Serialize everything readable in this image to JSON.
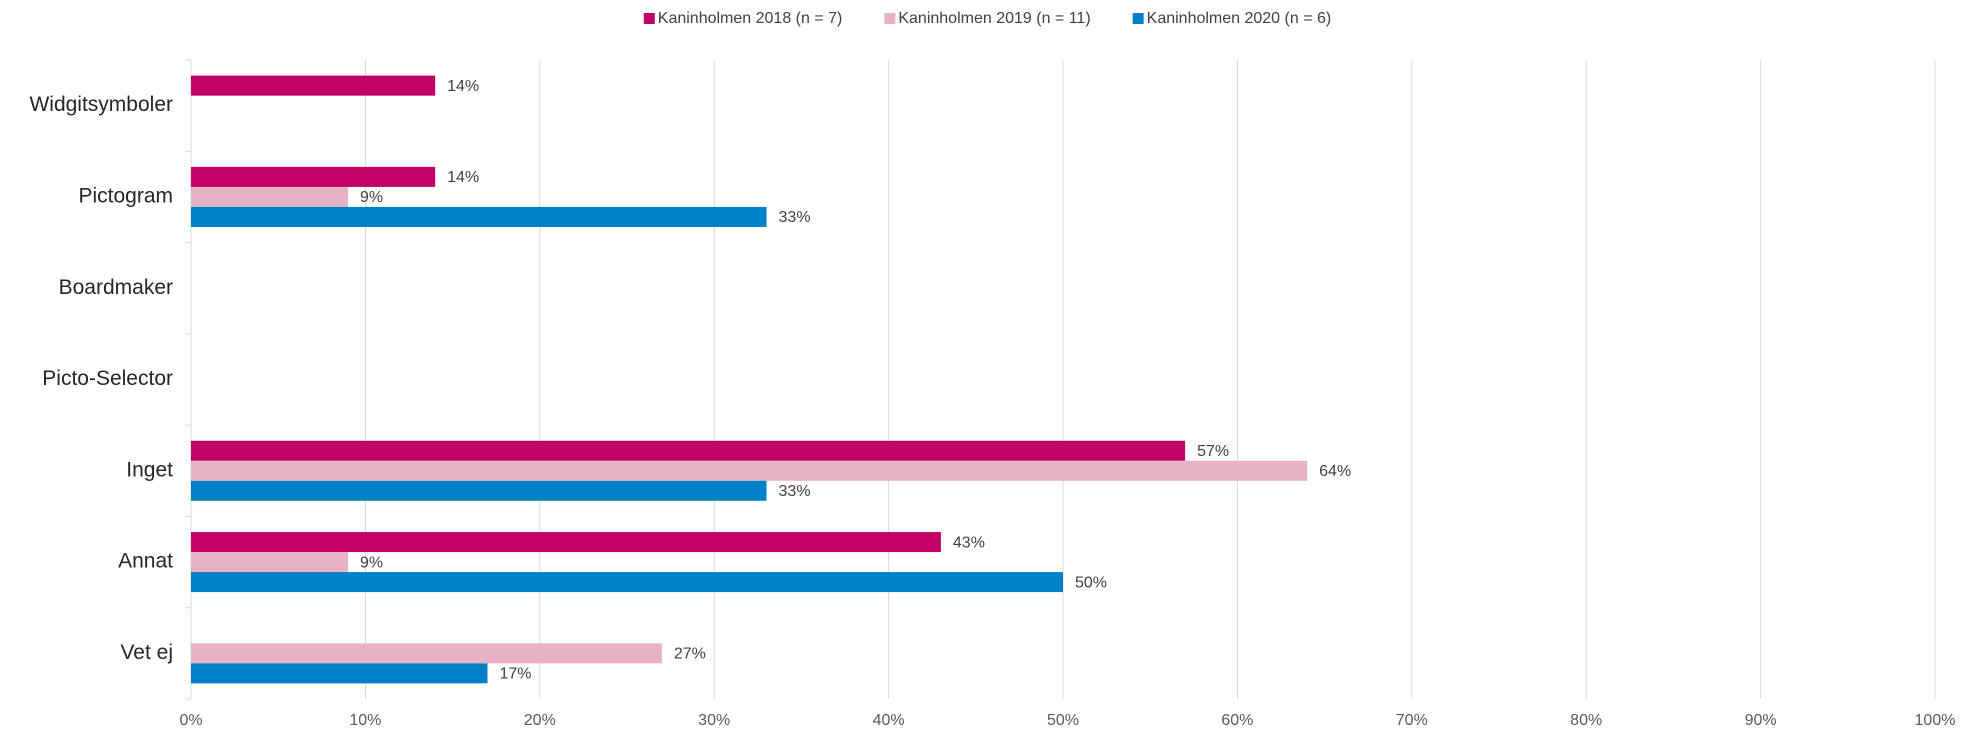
{
  "chart_data": {
    "type": "hbar",
    "categories": [
      "Widgitsymboler",
      "Pictogram",
      "Boardmaker",
      "Picto-Selector",
      "Inget",
      "Annat",
      "Vet ej"
    ],
    "series": [
      {
        "name": "Kaninholmen 2018 (n = 7)",
        "color": "#c10066",
        "values": [
          14,
          14,
          null,
          null,
          57,
          43,
          null
        ],
        "value_labels": [
          "14%",
          "14%",
          null,
          null,
          "57%",
          "43%",
          null
        ]
      },
      {
        "name": "Kaninholmen 2019 (n = 11)",
        "color": "#e5b3c5",
        "values": [
          null,
          9,
          null,
          null,
          64,
          9,
          27
        ],
        "value_labels": [
          null,
          "9%",
          null,
          null,
          "64%",
          "9%",
          "27%"
        ]
      },
      {
        "name": "Kaninholmen 2020 (n = 6)",
        "color": "#0080c6",
        "values": [
          null,
          33,
          null,
          null,
          33,
          50,
          17
        ],
        "value_labels": [
          null,
          "33%",
          null,
          null,
          "33%",
          "50%",
          "17%"
        ]
      }
    ],
    "xlim": [
      0,
      100
    ],
    "xticks": [
      {
        "value": 0,
        "label": "0%"
      },
      {
        "value": 10,
        "label": "10%"
      },
      {
        "value": 20,
        "label": "20%"
      },
      {
        "value": 30,
        "label": "30%"
      },
      {
        "value": 40,
        "label": "40%"
      },
      {
        "value": 50,
        "label": "50%"
      },
      {
        "value": 60,
        "label": "60%"
      },
      {
        "value": 70,
        "label": "70%"
      },
      {
        "value": 80,
        "label": "80%"
      },
      {
        "value": 90,
        "label": "90%"
      },
      {
        "value": 100,
        "label": "100%"
      }
    ],
    "grid": true,
    "legend": "top"
  }
}
